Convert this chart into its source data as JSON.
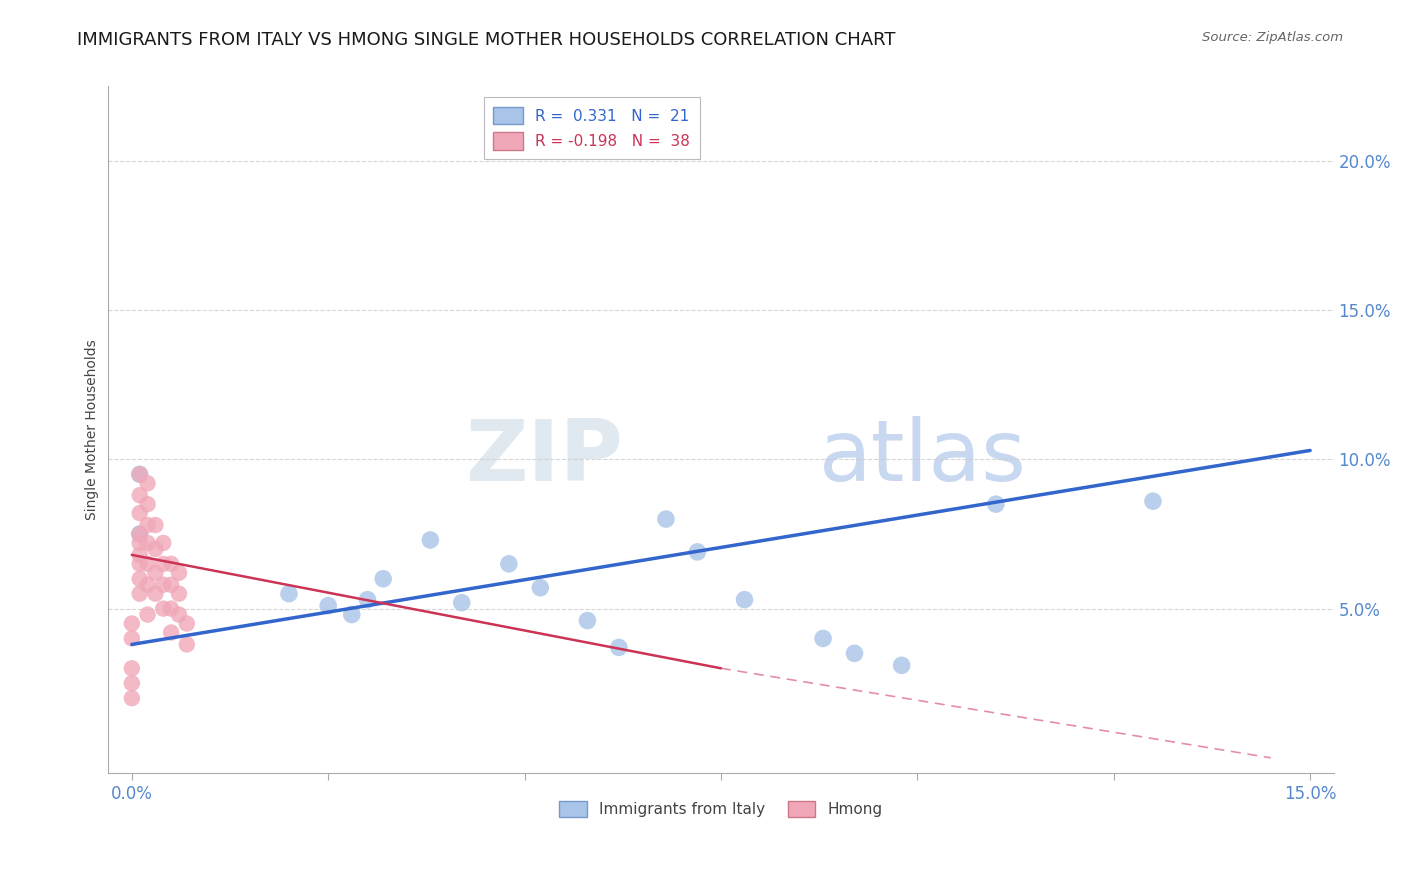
{
  "title": "IMMIGRANTS FROM ITALY VS HMONG SINGLE MOTHER HOUSEHOLDS CORRELATION CHART",
  "source": "Source: ZipAtlas.com",
  "ylabel": "Single Mother Households",
  "watermark_zip": "ZIP",
  "watermark_atlas": "atlas",
  "xlim": [
    -0.003,
    0.153
  ],
  "ylim": [
    -0.005,
    0.225
  ],
  "xticks": [
    0.0,
    0.025,
    0.05,
    0.075,
    0.1,
    0.125,
    0.15
  ],
  "yticks_right": [
    0.05,
    0.1,
    0.15,
    0.2
  ],
  "ytick_labels_right": [
    "5.0%",
    "10.0%",
    "15.0%",
    "20.0%"
  ],
  "blue_R": 0.331,
  "blue_N": 21,
  "pink_R": -0.198,
  "pink_N": 38,
  "blue_color": "#a8c4e8",
  "pink_color": "#f0a8b8",
  "blue_line_color": "#3366cc",
  "pink_line_color": "#cc3355",
  "blue_scatter_x": [
    0.001,
    0.001,
    0.02,
    0.025,
    0.028,
    0.03,
    0.032,
    0.038,
    0.042,
    0.048,
    0.052,
    0.058,
    0.062,
    0.068,
    0.072,
    0.078,
    0.088,
    0.092,
    0.098,
    0.11,
    0.13
  ],
  "blue_scatter_y": [
    0.075,
    0.095,
    0.055,
    0.051,
    0.048,
    0.053,
    0.06,
    0.073,
    0.052,
    0.065,
    0.057,
    0.046,
    0.037,
    0.08,
    0.069,
    0.053,
    0.04,
    0.035,
    0.031,
    0.085,
    0.086
  ],
  "pink_scatter_x": [
    0.0,
    0.0,
    0.0,
    0.0,
    0.0,
    0.001,
    0.001,
    0.001,
    0.001,
    0.001,
    0.001,
    0.001,
    0.001,
    0.001,
    0.002,
    0.002,
    0.002,
    0.002,
    0.002,
    0.002,
    0.002,
    0.003,
    0.003,
    0.003,
    0.003,
    0.004,
    0.004,
    0.004,
    0.004,
    0.005,
    0.005,
    0.005,
    0.005,
    0.006,
    0.006,
    0.006,
    0.007,
    0.007
  ],
  "pink_scatter_y": [
    0.02,
    0.025,
    0.03,
    0.04,
    0.045,
    0.055,
    0.06,
    0.065,
    0.068,
    0.072,
    0.075,
    0.082,
    0.088,
    0.095,
    0.048,
    0.058,
    0.065,
    0.072,
    0.078,
    0.085,
    0.092,
    0.055,
    0.062,
    0.07,
    0.078,
    0.05,
    0.058,
    0.065,
    0.072,
    0.042,
    0.05,
    0.058,
    0.065,
    0.048,
    0.055,
    0.062,
    0.038,
    0.045
  ],
  "blue_trendline": [
    0.0,
    0.15,
    0.038,
    0.103
  ],
  "pink_trendline": [
    0.0,
    0.075,
    0.068,
    0.03
  ],
  "pink_trendline_dashed": [
    0.075,
    0.145,
    0.03,
    0.0
  ],
  "grid_color": "#cccccc",
  "background_color": "#ffffff",
  "title_fontsize": 13,
  "tick_label_color": "#5588cc",
  "legend_fontsize": 11
}
